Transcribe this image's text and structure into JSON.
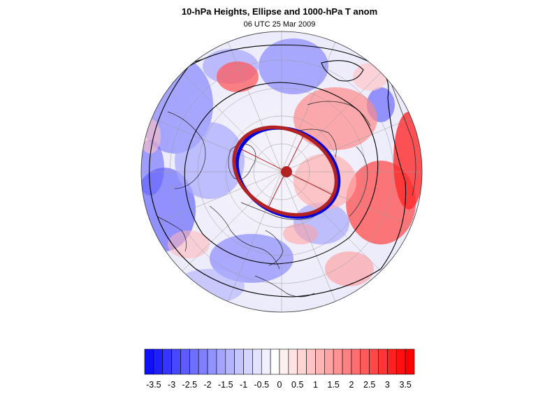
{
  "figure": {
    "title": "10-hPa Heights, Ellipse and 1000-hPa T anom",
    "subtitle": "06 UTC 25 Mar 2009"
  },
  "colorbar": {
    "levels": [
      -3.5,
      -3.25,
      -3,
      -2.75,
      -2.5,
      -2.25,
      -2,
      -1.75,
      -1.5,
      -1.25,
      -1,
      -0.75,
      -0.5,
      -0.25,
      0,
      0.25,
      0.5,
      0.75,
      1,
      1.25,
      1.5,
      1.75,
      2,
      2.25,
      2.5,
      2.75,
      3,
      3.25,
      3.5
    ],
    "colors": [
      "#1010ff",
      "#2020ff",
      "#3535ff",
      "#4848ff",
      "#5b5bff",
      "#6e6eff",
      "#8080ff",
      "#9393ff",
      "#a4a4ff",
      "#b4b4ff",
      "#c5c5ff",
      "#d4d4ff",
      "#e3e3ff",
      "#f0f0ff",
      "#ffffff",
      "#fff0f0",
      "#ffe3e3",
      "#ffd4d4",
      "#ffc5c5",
      "#ffb4b4",
      "#ffa4a4",
      "#ff9393",
      "#ff8080",
      "#ff6e6e",
      "#ff5b5b",
      "#ff4848",
      "#ff3535",
      "#ff2020",
      "#ff1010",
      "#ff0000"
    ],
    "tick_labels": [
      "-3.5",
      "-3",
      "-2.5",
      "-2",
      "-1.5",
      "-1",
      "-0.5",
      "0",
      "0.5",
      "1",
      "1.5",
      "2",
      "2.5",
      "3",
      "3.5"
    ]
  },
  "map": {
    "projection": "orthographic",
    "ellipse_color": "#b22222",
    "ellipse_alt_color": "#0000dd",
    "contour_color": "#000000",
    "anomaly_negative_color": "#4a4aff",
    "anomaly_positive_color": "#ff3a3a"
  }
}
